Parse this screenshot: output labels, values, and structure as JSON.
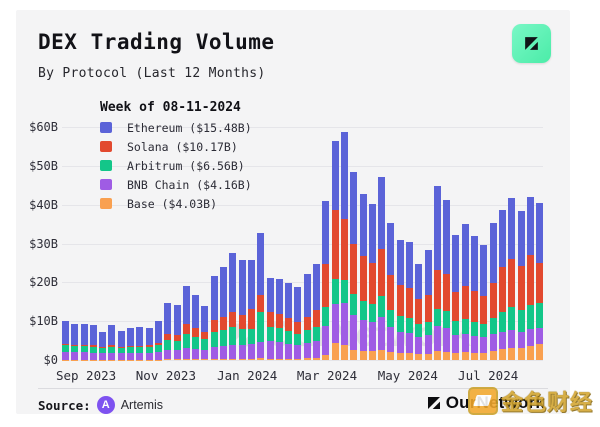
{
  "header": {
    "title": "DEX Trading Volume",
    "subtitle": "By Protocol (Last 12 Months)"
  },
  "legend": {
    "title": "Week of 08-11-2024",
    "items": [
      "Ethereum ($15.48B)",
      "Solana ($10.17B)",
      "Arbitrum ($6.56B)",
      "BNB Chain ($4.16B)",
      "Base ($4.03B)"
    ]
  },
  "source": {
    "label": "Source:",
    "name": "Artemis",
    "icon": "artemis-logo"
  },
  "brand": {
    "name": "OurNetwork",
    "icon": "ournetwork-logo",
    "badge_color": "#5ef2b4"
  },
  "watermarks": {
    "chart": "OurNetwork",
    "bottom_right_cn": "金色财经"
  },
  "chart_data": {
    "type": "bar",
    "stacked": true,
    "title": "DEX Trading Volume",
    "subtitle": "By Protocol (Last 12 Months)",
    "unit": "USD billions per week",
    "ylim": [
      0,
      60
    ],
    "grid": true,
    "legend_position": "top-left",
    "y_ticks": [
      "$60B",
      "$50B",
      "$40B",
      "$30B",
      "$20B",
      "$10B",
      "$0"
    ],
    "x_ticks": [
      {
        "label": "Sep 2023",
        "pos": 0.05
      },
      {
        "label": "Nov 2023",
        "pos": 0.216
      },
      {
        "label": "Jan 2024",
        "pos": 0.385
      },
      {
        "label": "Mar 2024",
        "pos": 0.551
      },
      {
        "label": "May 2024",
        "pos": 0.719
      },
      {
        "label": "Jul 2024",
        "pos": 0.886
      }
    ],
    "n_weeks": 52,
    "latest_week": {
      "label": "Week of 08-11-2024",
      "Ethereum": 15.48,
      "Solana": 10.17,
      "Arbitrum": 6.56,
      "BNB Chain": 4.16,
      "Base": 4.03
    },
    "stack_order_bottom_to_top": [
      "Base",
      "BNB Chain",
      "Arbitrum",
      "Solana",
      "Ethereum"
    ],
    "series": [
      {
        "name": "Ethereum",
        "color": "#5b63d8",
        "values": [
          5.8,
          5.3,
          5.4,
          5.3,
          4.0,
          5.2,
          4.2,
          4.5,
          4.7,
          4.4,
          5.5,
          8.2,
          7.7,
          9.9,
          8.5,
          6.8,
          11.4,
          12.7,
          15.1,
          14.1,
          12.7,
          15.8,
          8.8,
          9.2,
          8.9,
          8.9,
          11.0,
          12.0,
          16.3,
          17.7,
          22.5,
          18.3,
          16.0,
          15.2,
          18.7,
          13.2,
          11.7,
          11.8,
          9.1,
          11.5,
          21.7,
          19.2,
          14.7,
          15.9,
          14.1,
          13.0,
          15.4,
          14.8,
          15.6,
          14.0,
          15.0,
          15.48
        ]
      },
      {
        "name": "Solana",
        "color": "#e2492f",
        "values": [
          0.4,
          0.4,
          0.4,
          0.4,
          0.3,
          0.4,
          0.3,
          0.4,
          0.4,
          0.5,
          0.7,
          1.4,
          1.5,
          2.5,
          2.2,
          1.8,
          3.0,
          3.4,
          4.0,
          3.6,
          5.0,
          4.4,
          3.7,
          3.5,
          3.4,
          3.0,
          3.5,
          4.2,
          11.0,
          17.8,
          15.7,
          13.0,
          11.5,
          10.5,
          12.0,
          9.0,
          8.0,
          7.8,
          6.5,
          7.0,
          10.0,
          9.5,
          7.5,
          8.5,
          8.0,
          7.3,
          9.0,
          11.5,
          12.5,
          11.5,
          12.8,
          10.17
        ]
      },
      {
        "name": "Arbitrum",
        "color": "#13c689",
        "values": [
          1.7,
          1.5,
          1.6,
          1.5,
          1.3,
          1.5,
          1.4,
          1.5,
          1.5,
          1.5,
          1.8,
          2.6,
          2.5,
          3.6,
          3.1,
          2.7,
          4.0,
          4.3,
          4.6,
          4.3,
          3.9,
          7.8,
          3.8,
          3.7,
          3.4,
          3.0,
          3.3,
          3.6,
          5.0,
          6.5,
          5.7,
          5.5,
          5.0,
          4.8,
          5.5,
          4.5,
          4.0,
          3.8,
          3.2,
          3.4,
          4.5,
          4.3,
          3.6,
          3.8,
          3.5,
          3.3,
          4.0,
          5.2,
          5.8,
          5.5,
          6.2,
          6.56
        ]
      },
      {
        "name": "BNB Chain",
        "color": "#9f5ce4",
        "values": [
          2.0,
          1.9,
          1.9,
          1.8,
          1.6,
          1.8,
          1.6,
          1.7,
          1.7,
          1.7,
          1.9,
          2.4,
          2.3,
          2.9,
          2.7,
          2.4,
          3.0,
          3.2,
          3.6,
          3.5,
          3.9,
          4.2,
          4.5,
          4.3,
          3.8,
          3.5,
          4.0,
          4.5,
          7.5,
          10.0,
          10.9,
          9.0,
          8.0,
          7.5,
          8.5,
          6.5,
          5.5,
          5.2,
          4.5,
          4.8,
          6.5,
          6.2,
          4.5,
          4.8,
          4.4,
          4.2,
          4.6,
          4.4,
          4.6,
          4.3,
          4.4,
          4.16
        ]
      },
      {
        "name": "Base",
        "color": "#f9a050",
        "values": [
          0.1,
          0.1,
          0.1,
          0.1,
          0.1,
          0.1,
          0.1,
          0.1,
          0.1,
          0.1,
          0.1,
          0.2,
          0.2,
          0.2,
          0.2,
          0.2,
          0.3,
          0.3,
          0.3,
          0.3,
          0.3,
          0.4,
          0.3,
          0.3,
          0.3,
          0.3,
          0.4,
          0.5,
          1.2,
          4.3,
          3.9,
          2.5,
          2.3,
          2.2,
          2.5,
          2.0,
          1.8,
          1.8,
          1.5,
          1.6,
          2.2,
          2.1,
          1.9,
          2.0,
          1.9,
          1.8,
          2.2,
          2.8,
          3.2,
          3.0,
          3.6,
          4.03
        ]
      }
    ]
  }
}
